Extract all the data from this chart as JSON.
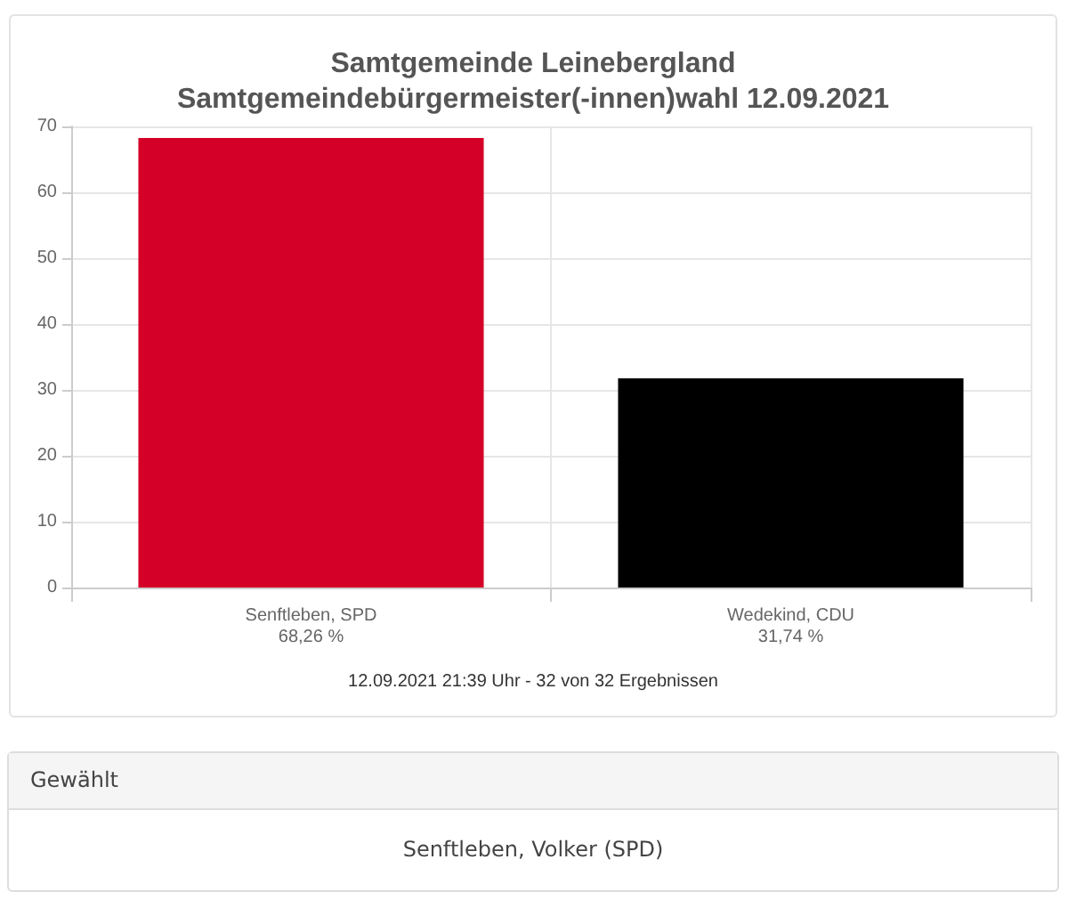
{
  "chart_data": {
    "type": "bar",
    "title": "Samtgemeinde Leinebergland",
    "subtitle": "Samtgemeindebürgermeister(-innen)wahl 12.09.2021",
    "categories": [
      "Senftleben, SPD",
      "Wedekind, CDU"
    ],
    "values": [
      68.26,
      31.74
    ],
    "value_labels": [
      "68,26 %",
      "31,74 %"
    ],
    "colors": [
      "#d40028",
      "#000000"
    ],
    "ylim": [
      0,
      70
    ],
    "yticks": [
      0,
      10,
      20,
      30,
      40,
      50,
      60,
      70
    ],
    "grid": true,
    "annotations": [
      "12.09.2021 21:39 Uhr - 32 von 32 Ergebnissen",
      "Gewählt",
      "Senftleben, Volker (SPD)"
    ]
  }
}
